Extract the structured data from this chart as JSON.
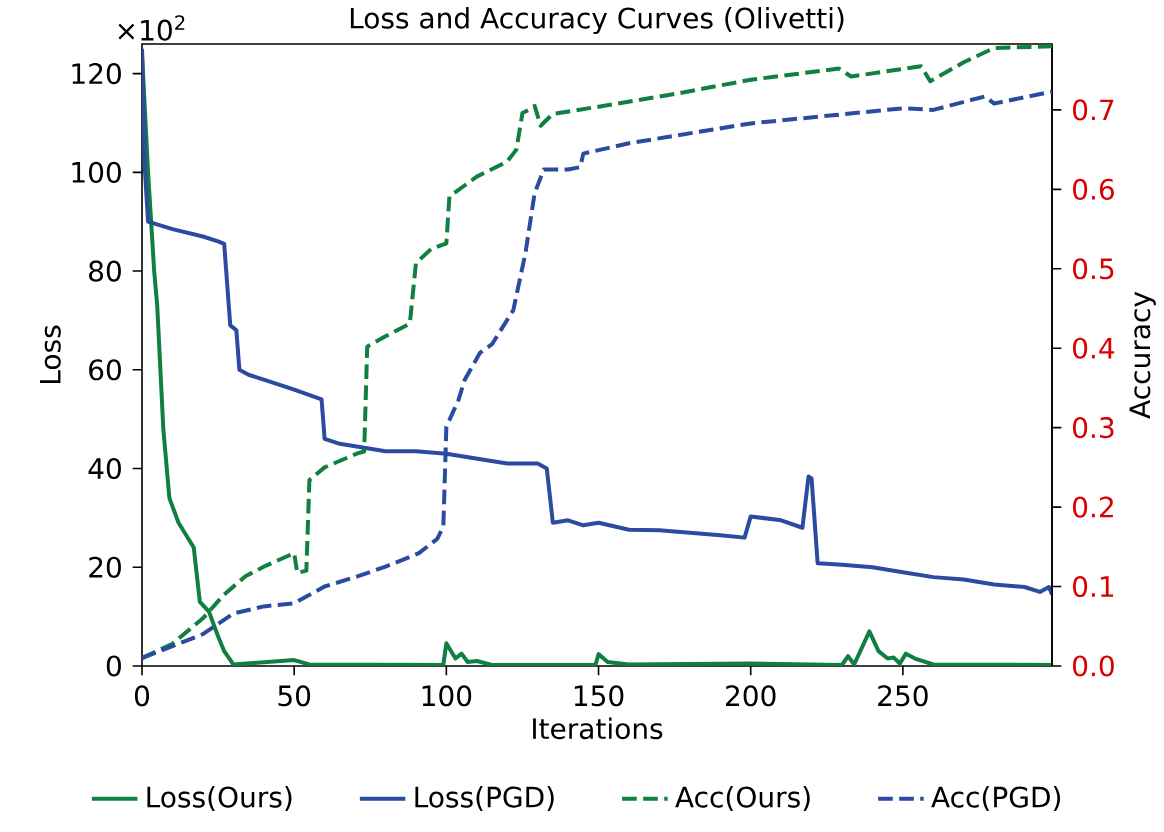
{
  "chart_data": {
    "type": "line",
    "title": "Loss and Accuracy Curves (Olivetti)",
    "xlabel": "Iterations",
    "ylabel": "Loss",
    "y2label": "Accuracy",
    "annotations": [
      "×10$^{2}$"
    ],
    "xlim": [
      0,
      299
    ],
    "xticks": [
      0,
      50,
      100,
      150,
      200,
      250
    ],
    "ylim": [
      0,
      126
    ],
    "yticks": [
      0,
      20,
      40,
      60,
      80,
      100,
      120
    ],
    "y2lim": [
      0,
      0.783
    ],
    "y2ticks": [
      {
        "value": 0,
        "label": "0.0"
      },
      0.1,
      0.2,
      0.3,
      0.4,
      0.5,
      0.6,
      0.7
    ],
    "legend": "bottom",
    "marker": "none",
    "grid": false,
    "series": [
      {
        "name": "Loss(Ours)",
        "color": "#0f8040",
        "line_style": "solid",
        "x": [
          0,
          2,
          4,
          5,
          7,
          9,
          12,
          17,
          19,
          22,
          25,
          27,
          30,
          50,
          55,
          99,
          100,
          103,
          105,
          107,
          110,
          115,
          149,
          150,
          153,
          160,
          200,
          230,
          232,
          234,
          239,
          242,
          245,
          247,
          249,
          251,
          254,
          260,
          299
        ],
        "values": [
          124,
          100,
          80,
          73,
          48,
          34,
          29,
          24,
          13,
          11,
          6,
          3,
          0.3,
          1.2,
          0.3,
          0.2,
          4.6,
          1.5,
          2.5,
          0.8,
          1,
          0.2,
          0.2,
          2.4,
          0.8,
          0.3,
          0.5,
          0.2,
          2,
          0.3,
          7,
          3,
          1.5,
          1.7,
          0.5,
          2.5,
          1.5,
          0.3,
          0.2
        ]
      },
      {
        "name": "Loss(PGD)",
        "color": "#2b4ba0",
        "line_style": "solid",
        "x": [
          0,
          1,
          2,
          10,
          20,
          25,
          27,
          29,
          31,
          32,
          35,
          40,
          45,
          50,
          59,
          60,
          65,
          70,
          80,
          90,
          100,
          110,
          120,
          130,
          133,
          135,
          140,
          145,
          150,
          160,
          170,
          180,
          190,
          198,
          200,
          210,
          217,
          219,
          220,
          222,
          230,
          240,
          250,
          260,
          270,
          280,
          290,
          295,
          298,
          299
        ],
        "values": [
          125,
          100,
          90,
          88.5,
          87,
          86,
          85.5,
          69,
          68,
          60,
          59,
          58,
          57,
          56,
          54,
          46,
          45,
          44.5,
          43.5,
          43.5,
          43,
          42,
          41,
          41,
          40,
          29,
          29.5,
          28.5,
          29,
          27.6,
          27.5,
          27,
          26.5,
          26,
          30.3,
          29.5,
          28,
          38.4,
          38,
          20.8,
          20.5,
          20,
          19,
          18,
          17.5,
          16.5,
          16,
          15,
          16,
          14.5
        ]
      },
      {
        "name": "Acc(Ours)",
        "color": "#0f8040",
        "line_style": "dashed",
        "axis": "y2",
        "x": [
          0,
          10,
          20,
          27,
          34,
          40,
          50,
          51,
          54,
          55,
          60,
          71,
          73,
          74,
          80,
          88,
          90,
          95,
          100,
          101,
          110,
          120,
          123,
          125,
          127,
          129,
          131,
          135,
          150,
          175,
          200,
          229,
          233,
          256,
          259,
          270,
          280,
          299
        ],
        "values": [
          0.01,
          0.028,
          0.06,
          0.09,
          0.113,
          0.125,
          0.142,
          0.117,
          0.12,
          0.234,
          0.25,
          0.268,
          0.27,
          0.402,
          0.415,
          0.431,
          0.507,
          0.525,
          0.532,
          0.591,
          0.616,
          0.635,
          0.65,
          0.696,
          0.7,
          0.705,
          0.68,
          0.695,
          0.704,
          0.72,
          0.738,
          0.752,
          0.742,
          0.755,
          0.736,
          0.76,
          0.778,
          0.78
        ]
      },
      {
        "name": "Acc(PGD)",
        "color": "#2b4ba0",
        "line_style": "dashed",
        "axis": "y2",
        "x": [
          0,
          10,
          20,
          30,
          40,
          50,
          60,
          71,
          80,
          91,
          97,
          99,
          100,
          104,
          106,
          111,
          115,
          122,
          126,
          129,
          132,
          140,
          144,
          145,
          160,
          200,
          250,
          260,
          277,
          280,
          299
        ],
        "values": [
          0.01,
          0.025,
          0.04,
          0.066,
          0.075,
          0.079,
          0.1,
          0.113,
          0.125,
          0.142,
          0.16,
          0.175,
          0.301,
          0.335,
          0.36,
          0.394,
          0.405,
          0.448,
          0.52,
          0.595,
          0.625,
          0.625,
          0.628,
          0.645,
          0.658,
          0.683,
          0.702,
          0.7,
          0.717,
          0.708,
          0.723
        ]
      }
    ]
  }
}
